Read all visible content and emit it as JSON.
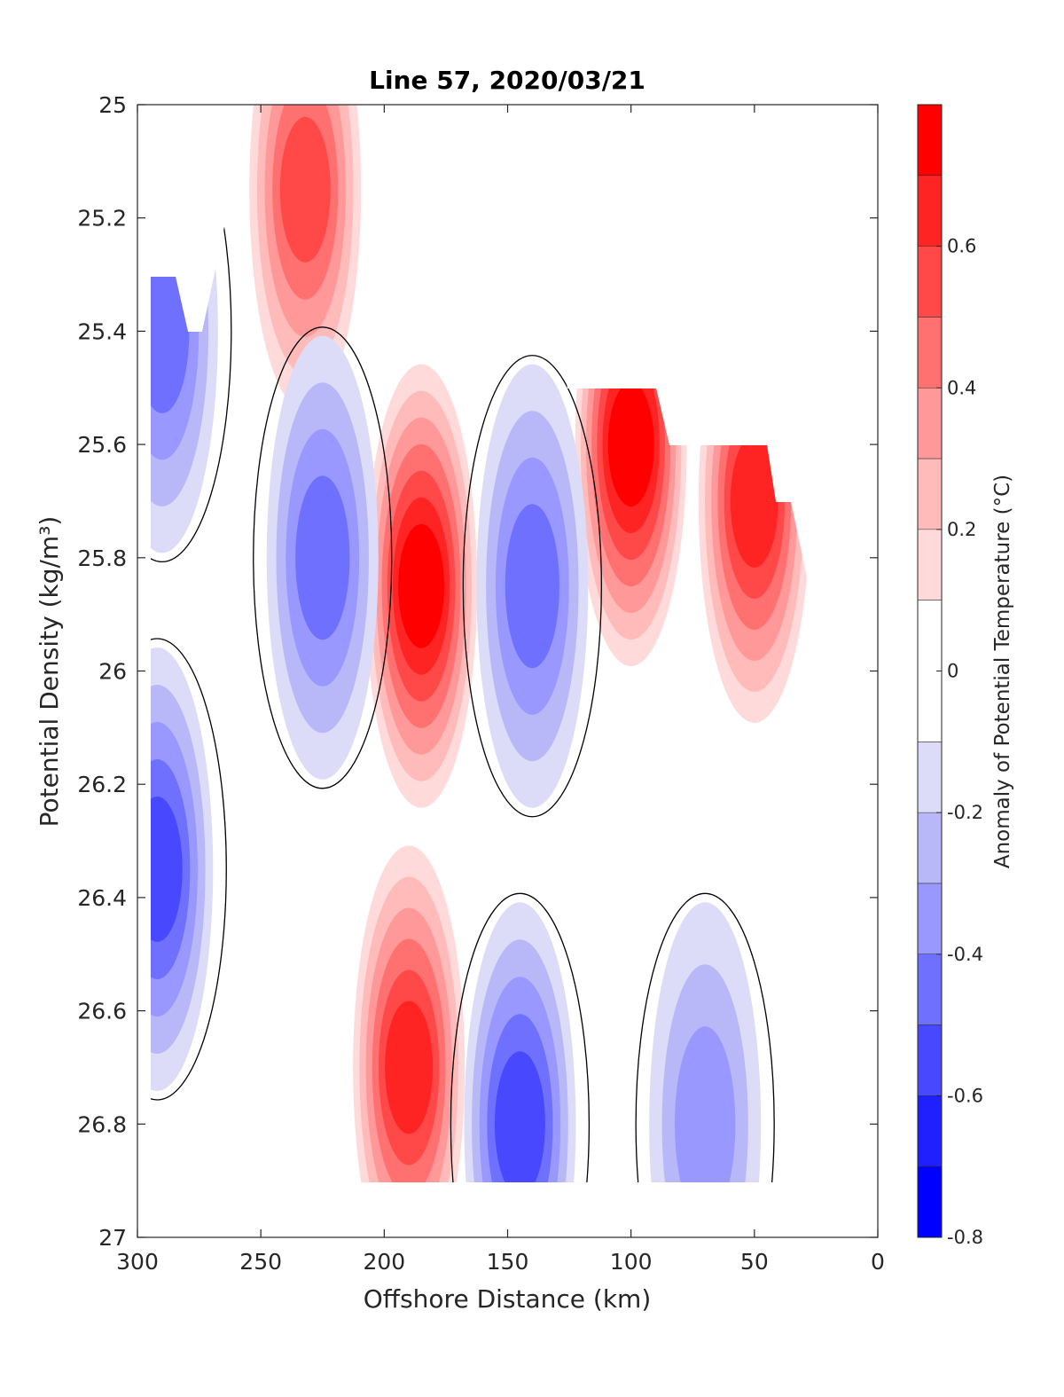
{
  "chart_data": {
    "type": "heatmap",
    "subtype": "filled-contour",
    "title": "Line 57, 2020/03/21",
    "xlabel": "Offshore Distance (km)",
    "ylabel": "Potential Density (kg/m³)",
    "xlim": [
      300,
      0
    ],
    "x_reversed": true,
    "ylim": [
      25,
      27
    ],
    "y_reversed": true,
    "xticks": [
      300,
      250,
      200,
      150,
      100,
      50,
      0
    ],
    "yticks": [
      25,
      25.2,
      25.4,
      25.6,
      25.8,
      26,
      26.2,
      26.4,
      26.6,
      26.8,
      27
    ],
    "xtick_labels": [
      "300",
      "250",
      "200",
      "150",
      "100",
      "50",
      "0"
    ],
    "ytick_labels": [
      "25",
      "25.2",
      "25.4",
      "25.6",
      "25.8",
      "26",
      "26.2",
      "26.4",
      "26.6",
      "26.8",
      "27"
    ],
    "colorbar": {
      "label": "Anomaly of Potential Temperature (°C)",
      "range": [
        -0.8,
        0.8
      ],
      "levels": [
        -0.8,
        -0.7,
        -0.6,
        -0.5,
        -0.4,
        -0.3,
        -0.2,
        -0.1,
        0.1,
        0.2,
        0.3,
        0.4,
        0.5,
        0.6,
        0.7,
        0.8
      ],
      "ticks": [
        -0.8,
        -0.6,
        -0.4,
        -0.2,
        0,
        0.2,
        0.4,
        0.6
      ],
      "tick_labels": [
        "-0.8",
        "-0.6",
        "-0.4",
        "-0.2",
        "0",
        "0.2",
        "0.4",
        "0.6"
      ],
      "colors": [
        "#0000ff",
        "#2020ff",
        "#4848ff",
        "#7070ff",
        "#9898ff",
        "#b8b8f8",
        "#dcdcf8",
        "#ffffff",
        "#ffdada",
        "#ffbaba",
        "#ff9898",
        "#ff7070",
        "#ff4848",
        "#ff2424",
        "#ff0000"
      ]
    },
    "data_extent": {
      "x_range_km": [
        295,
        18
      ],
      "sigma_range": [
        25,
        26.9
      ]
    },
    "features": [
      {
        "name": "warm core",
        "x_km": 185,
        "sigma": 25.85,
        "anomaly": 0.7
      },
      {
        "name": "warm core",
        "x_km": 100,
        "sigma": 25.6,
        "anomaly": 0.7
      },
      {
        "name": "warm core",
        "x_km": 50,
        "sigma": 25.7,
        "anomaly": 0.6
      },
      {
        "name": "warm core",
        "x_km": 232,
        "sigma": 25.15,
        "anomaly": 0.5
      },
      {
        "name": "warm core",
        "x_km": 190,
        "sigma": 26.7,
        "anomaly": 0.6
      },
      {
        "name": "cold core",
        "x_km": 225,
        "sigma": 25.8,
        "anomaly": -0.4
      },
      {
        "name": "cold core",
        "x_km": 140,
        "sigma": 25.85,
        "anomaly": -0.4
      },
      {
        "name": "cold core",
        "x_km": 145,
        "sigma": 26.8,
        "anomaly": -0.5
      },
      {
        "name": "cold core",
        "x_km": 292,
        "sigma": 26.35,
        "anomaly": -0.5
      },
      {
        "name": "cold core",
        "x_km": 290,
        "sigma": 25.4,
        "anomaly": -0.4
      },
      {
        "name": "cold core",
        "x_km": 70,
        "sigma": 26.8,
        "anomaly": -0.3
      }
    ],
    "grid": false,
    "legend": "colorbar-right"
  }
}
